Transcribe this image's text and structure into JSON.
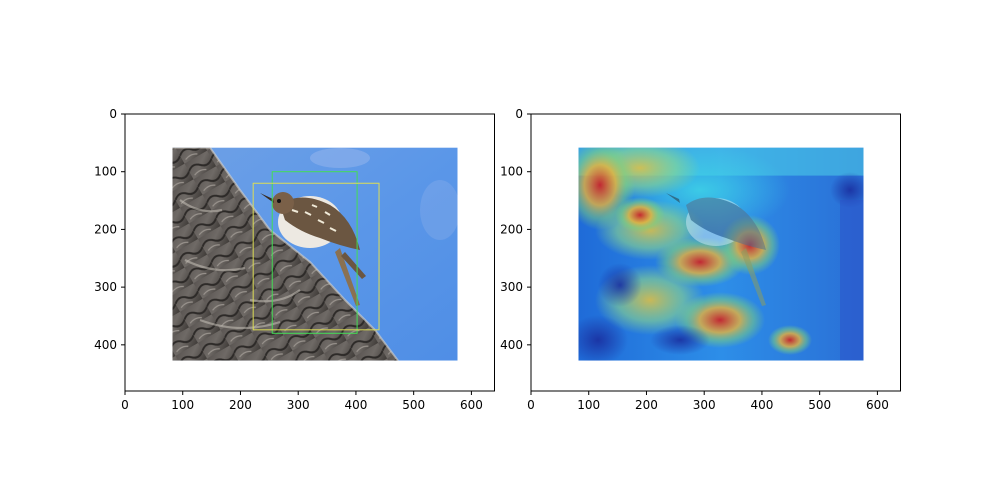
{
  "chart_data": [
    {
      "type": "image",
      "title": "",
      "xlabel": "",
      "ylabel": "",
      "xlim": [
        0,
        640
      ],
      "ylim": [
        480,
        0
      ],
      "xticks": [
        0,
        100,
        200,
        300,
        400,
        500,
        600
      ],
      "yticks": [
        0,
        100,
        200,
        300,
        400
      ],
      "image_extent": {
        "x": [
          80,
          575
        ],
        "y": [
          58,
          428
        ]
      },
      "image_content": "photo of a brown creeper bird on tree bark against blue sky",
      "boxes": [
        {
          "color": "#44dd55",
          "x0": 255,
          "y0": 100,
          "x1": 402,
          "y1": 380
        },
        {
          "color": "#dddd55",
          "x0": 222,
          "y0": 120,
          "x1": 440,
          "y1": 374
        }
      ]
    },
    {
      "type": "heatmap",
      "title": "",
      "xlabel": "",
      "ylabel": "",
      "xlim": [
        0,
        640
      ],
      "ylim": [
        480,
        0
      ],
      "xticks": [
        0,
        100,
        200,
        300,
        400,
        500,
        600
      ],
      "yticks": [
        0,
        100,
        200,
        300,
        400
      ],
      "image_extent": {
        "x": [
          80,
          575
        ],
        "y": [
          58,
          428
        ]
      },
      "colormap": "jet",
      "image_content": "attention heatmap overlay on the bird photo"
    }
  ]
}
